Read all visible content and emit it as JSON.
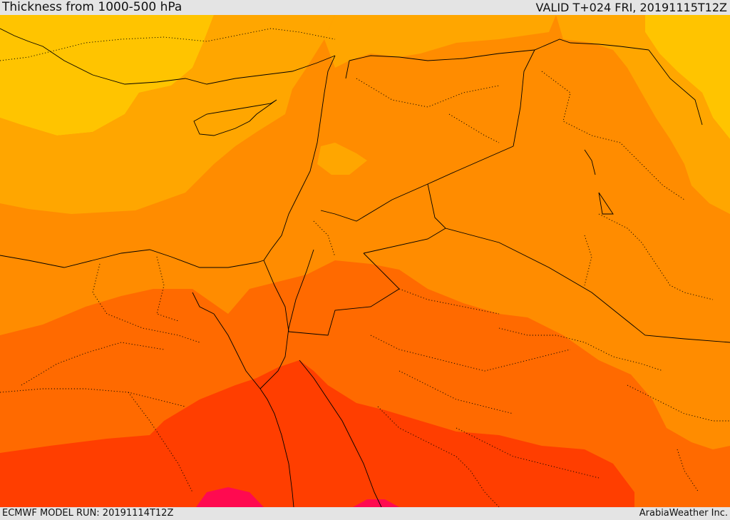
{
  "header": {
    "title": "Thickness from 1000-500 hPa",
    "valid_time": "VALID T+024 FRI, 20191115T12Z"
  },
  "footer": {
    "model_run": "ECMWF MODEL RUN: 20191114T12Z",
    "credit": "ArabiaWeather Inc."
  },
  "map": {
    "field": "thickness-shading",
    "colors": {
      "band_1_coolest": "#ffc400",
      "band_2": "#ffa600",
      "band_3": "#ff8c00",
      "band_4": "#ff6a00",
      "band_5": "#ff3e00",
      "band_6_warmest": "#ff0a50",
      "boundaries": "#000000"
    }
  }
}
